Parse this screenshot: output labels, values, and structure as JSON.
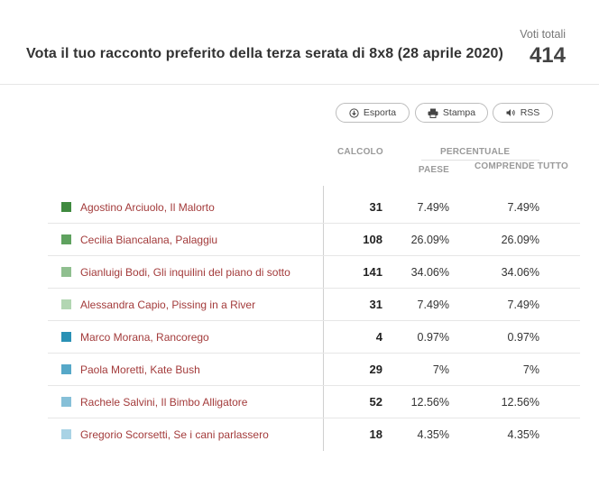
{
  "poll": {
    "title": "Vota il tuo racconto preferito della terza serata di 8x8 (28 aprile 2020)",
    "total_label": "Voti totali",
    "total_value": "414"
  },
  "toolbar": {
    "export_label": "Esporta",
    "export_icon": "download-circle-icon",
    "print_label": "Stampa",
    "print_icon": "printer-icon",
    "rss_label": "RSS",
    "rss_icon": "speaker-icon"
  },
  "columns": {
    "calc": "CALCOLO",
    "percentage": "PERCENTUALE",
    "country": "PAESE",
    "includes_all": "COMPRENDE TUTTO"
  },
  "results": [
    {
      "name": "Agostino Arciuolo, Il Malorto",
      "count": "31",
      "pct_country": "7.49%",
      "pct_all": "7.49%",
      "color": "#3f8a3f"
    },
    {
      "name": "Cecilia Biancalana, Palaggiu",
      "count": "108",
      "pct_country": "26.09%",
      "pct_all": "26.09%",
      "color": "#5fa25f"
    },
    {
      "name": "Gianluigi Bodi, Gli inquilini del piano di sotto",
      "count": "141",
      "pct_country": "34.06%",
      "pct_all": "34.06%",
      "color": "#8fbf8f"
    },
    {
      "name": "Alessandra Capio, Pissing in a River",
      "count": "31",
      "pct_country": "7.49%",
      "pct_all": "7.49%",
      "color": "#b2d6b2"
    },
    {
      "name": "Marco Morana, Rancorego",
      "count": "4",
      "pct_country": "0.97%",
      "pct_all": "0.97%",
      "color": "#2a91b5"
    },
    {
      "name": "Paola Moretti, Kate Bush",
      "count": "29",
      "pct_country": "7%",
      "pct_all": "7%",
      "color": "#56a8c8"
    },
    {
      "name": "Rachele Salvini, Il Bimbo Alligatore",
      "count": "52",
      "pct_country": "12.56%",
      "pct_all": "12.56%",
      "color": "#86c0d8"
    },
    {
      "name": "Gregorio Scorsetti, Se i cani parlassero",
      "count": "18",
      "pct_country": "4.35%",
      "pct_all": "4.35%",
      "color": "#a9d3e5"
    }
  ]
}
